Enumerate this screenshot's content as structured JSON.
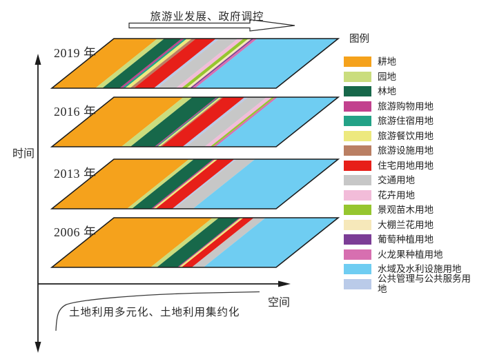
{
  "top_arrow": {
    "label": "旅游业发展、政府调控"
  },
  "axes": {
    "time_label": "时间",
    "space_label": "空间",
    "curve_label": "土地利用多元化、土地利用集约化"
  },
  "legend": {
    "title": "图例",
    "items": [
      {
        "k": "farmland",
        "label": "耕地"
      },
      {
        "k": "garden",
        "label": "园地"
      },
      {
        "k": "forest",
        "label": "林地"
      },
      {
        "k": "tourism_shopping",
        "label": "旅游购物用地"
      },
      {
        "k": "tourism_lodging",
        "label": "旅游住宿用地"
      },
      {
        "k": "tourism_dining",
        "label": "旅游餐饮用地"
      },
      {
        "k": "tourism_facility",
        "label": "旅游设施用地"
      },
      {
        "k": "residential",
        "label": "住宅用地用地"
      },
      {
        "k": "transport",
        "label": "交通用地"
      },
      {
        "k": "flower",
        "label": "花卉用地"
      },
      {
        "k": "nursery",
        "label": "景观苗木用地"
      },
      {
        "k": "greenhouse_orchid",
        "label": "大棚兰花用地"
      },
      {
        "k": "grape",
        "label": "葡萄种植用地"
      },
      {
        "k": "dragonfruit",
        "label": "火龙果种植用地"
      },
      {
        "k": "water",
        "label": "水域及水利设施用地"
      },
      {
        "k": "public_service",
        "label": "公共管理与公共服务用地"
      }
    ]
  },
  "colors": {
    "farmland": "#F5A21C",
    "garden": "#CADD7E",
    "forest": "#17684A",
    "tourism_shopping": "#C2418E",
    "tourism_lodging": "#23A287",
    "tourism_dining": "#EDE97E",
    "tourism_facility": "#BA7F63",
    "residential": "#E71F19",
    "transport": "#C7C7C7",
    "flower": "#F2BCD9",
    "nursery": "#96C62F",
    "greenhouse_orchid": "#F6E8BA",
    "grape": "#7C3D96",
    "dragonfruit": "#D76FB0",
    "water": "#6FCDF2",
    "public_service": "#BACBE9"
  },
  "chart_data": {
    "type": "composition-strips",
    "description": "Four stacked parallelograms (one per year) showing land-use composition along space axis; stripe fractions are horizontal share of each land-use type, estimated from the figure.",
    "layers": [
      {
        "year": "2019",
        "label": "2019 年",
        "stripes": [
          {
            "k": "farmland",
            "f": 0.194
          },
          {
            "k": "garden",
            "f": 0.031
          },
          {
            "k": "forest",
            "f": 0.077
          },
          {
            "k": "tourism_shopping",
            "f": 0.012
          },
          {
            "k": "tourism_lodging",
            "f": 0.012
          },
          {
            "k": "tourism_dining",
            "f": 0.022
          },
          {
            "k": "tourism_facility",
            "f": 0.018
          },
          {
            "k": "residential",
            "f": 0.089
          },
          {
            "k": "public_service",
            "f": 0.015
          },
          {
            "k": "transport",
            "f": 0.083
          },
          {
            "k": "flower",
            "f": 0.025
          },
          {
            "k": "nursery",
            "f": 0.022
          },
          {
            "k": "greenhouse_orchid",
            "f": 0.015
          },
          {
            "k": "grape",
            "f": 0.009
          },
          {
            "k": "dragonfruit",
            "f": 0.015
          },
          {
            "k": "water",
            "f": 0.361
          }
        ]
      },
      {
        "year": "2016",
        "label": "2016 年",
        "stripes": [
          {
            "k": "farmland",
            "f": 0.31
          },
          {
            "k": "garden",
            "f": 0.04
          },
          {
            "k": "forest",
            "f": 0.108
          },
          {
            "k": "tourism_shopping",
            "f": 0.007
          },
          {
            "k": "tourism_lodging",
            "f": 0.006
          },
          {
            "k": "tourism_dining",
            "f": 0.01
          },
          {
            "k": "tourism_facility",
            "f": 0.007
          },
          {
            "k": "residential",
            "f": 0.095
          },
          {
            "k": "public_service",
            "f": 0.015
          },
          {
            "k": "transport",
            "f": 0.083
          },
          {
            "k": "flower",
            "f": 0.025
          },
          {
            "k": "nursery",
            "f": 0.012
          },
          {
            "k": "dragonfruit",
            "f": 0.012
          },
          {
            "k": "water",
            "f": 0.27
          }
        ]
      },
      {
        "year": "2013",
        "label": "2013 年",
        "stripes": [
          {
            "k": "farmland",
            "f": 0.335
          },
          {
            "k": "garden",
            "f": 0.022
          },
          {
            "k": "forest",
            "f": 0.086
          },
          {
            "k": "tourism_shopping",
            "f": 0.008
          },
          {
            "k": "tourism_dining",
            "f": 0.012
          },
          {
            "k": "residential",
            "f": 0.074
          },
          {
            "k": "public_service",
            "f": 0.009
          },
          {
            "k": "transport",
            "f": 0.083
          },
          {
            "k": "water",
            "f": 0.371
          }
        ]
      },
      {
        "year": "2006",
        "label": "2006 年",
        "stripes": [
          {
            "k": "farmland",
            "f": 0.44
          },
          {
            "k": "garden",
            "f": 0.028
          },
          {
            "k": "forest",
            "f": 0.092
          },
          {
            "k": "tourism_shopping",
            "f": 0.006
          },
          {
            "k": "tourism_dining",
            "f": 0.012
          },
          {
            "k": "residential",
            "f": 0.046
          },
          {
            "k": "transport",
            "f": 0.052
          },
          {
            "k": "water",
            "f": 0.324
          }
        ]
      }
    ]
  }
}
